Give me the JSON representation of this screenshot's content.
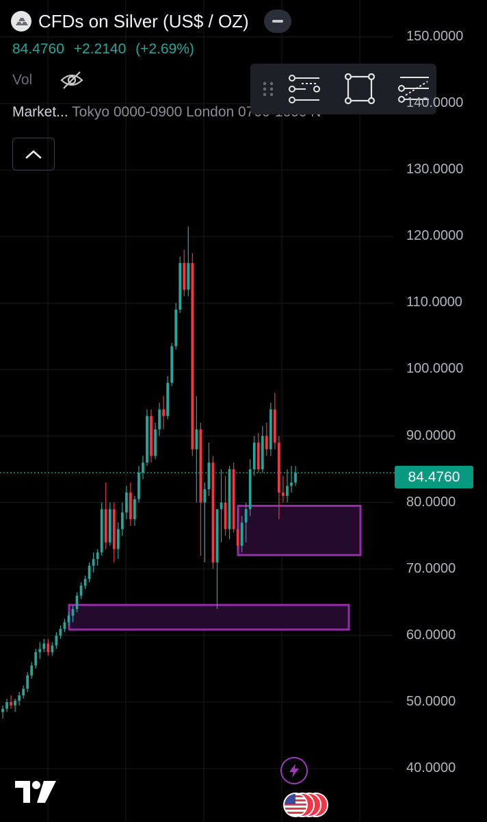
{
  "header": {
    "title": "CFDs on Silver (US$ / OZ)",
    "last_price": "84.4760",
    "change": "+2.2140",
    "change_pct": "(+2.69%)",
    "vol_label": "Vol",
    "market_label": "Market...",
    "sessions_text": "Tokyo 0000-0900 London 0700-1600 N"
  },
  "price_tag": "84.4760",
  "icons": {
    "symbol_logo": "silver-bars-icon",
    "collapse": "minus-icon",
    "visibility": "eye-off-icon",
    "expand": "chevron-up-icon",
    "toolbar_grip": "drag-handle-icon",
    "tool_1": "horizontal-lines-tool-icon",
    "tool_2": "rectangle-tool-icon",
    "tool_3": "parallel-channel-tool-icon",
    "lightning": "lightning-icon",
    "events": "us-flag-events-icon",
    "brand": "tradingview-logo-icon"
  },
  "colors": {
    "up": "#26a69a",
    "down": "#f23645",
    "zone_border": "#9c27b0",
    "zone_fill": "#240a2b",
    "price_line": "#089981"
  },
  "chart_data": {
    "type": "candlestick",
    "title": "CFDs on Silver (US$ / OZ)",
    "yaxis": {
      "ticks": [
        "150.0000",
        "140.0000",
        "130.0000",
        "120.0000",
        "110.0000",
        "100.0000",
        "90.0000",
        "80.0000",
        "70.0000",
        "60.0000",
        "50.0000",
        "40.0000"
      ],
      "ylim": [
        37,
        157
      ]
    },
    "last_price": 84.476,
    "grid": true,
    "ohlc": [
      [
        48.5,
        49.5,
        47.5,
        49
      ],
      [
        49,
        50.5,
        48.5,
        50
      ],
      [
        50,
        51,
        49,
        49.5
      ],
      [
        49.5,
        50.5,
        48.5,
        50.2
      ],
      [
        50.2,
        51.5,
        49.5,
        51
      ],
      [
        51,
        52.5,
        50.5,
        52
      ],
      [
        52,
        54.5,
        51.5,
        54
      ],
      [
        54,
        56,
        53.5,
        55.5
      ],
      [
        55.5,
        58,
        55,
        57.5
      ],
      [
        57.5,
        59,
        56.5,
        58
      ],
      [
        58,
        59.5,
        57.5,
        58.8
      ],
      [
        58.8,
        59.5,
        57,
        57.5
      ],
      [
        57.5,
        59,
        57,
        58.5
      ],
      [
        58.5,
        60.5,
        58,
        60
      ],
      [
        60,
        61.5,
        59.5,
        61
      ],
      [
        61,
        62.5,
        60.5,
        62
      ],
      [
        62,
        63.5,
        61.5,
        63
      ],
      [
        63,
        64.5,
        62,
        64
      ],
      [
        64,
        66.5,
        63.5,
        66
      ],
      [
        66,
        68,
        65.5,
        67.5
      ],
      [
        67.5,
        69,
        67,
        68.5
      ],
      [
        68.5,
        71,
        68,
        70.5
      ],
      [
        70.5,
        72.5,
        69.5,
        71.5
      ],
      [
        71.5,
        73,
        70.5,
        72.5
      ],
      [
        72.5,
        80,
        72,
        79
      ],
      [
        79,
        83,
        73,
        74
      ],
      [
        74,
        80,
        73.5,
        79
      ],
      [
        79,
        80,
        71,
        73
      ],
      [
        73,
        77,
        71.5,
        76
      ],
      [
        76,
        80,
        75,
        78.5
      ],
      [
        78.5,
        82.5,
        77.5,
        81.5
      ],
      [
        81.5,
        83,
        76.5,
        77.5
      ],
      [
        77.5,
        81,
        76.5,
        80.5
      ],
      [
        80.5,
        85.5,
        80,
        84.5
      ],
      [
        84.5,
        87,
        83.5,
        86
      ],
      [
        86,
        94,
        85.5,
        93
      ],
      [
        93,
        94,
        86,
        87
      ],
      [
        87,
        92,
        86.5,
        91
      ],
      [
        91,
        95,
        90,
        94
      ],
      [
        94,
        96,
        91,
        93
      ],
      [
        93,
        99,
        92.5,
        98
      ],
      [
        98,
        104,
        97.5,
        103.5
      ],
      [
        103.5,
        110,
        103,
        109
      ],
      [
        109,
        117,
        108.5,
        116
      ],
      [
        116,
        118,
        111,
        112
      ],
      [
        112,
        121.5,
        111,
        116
      ],
      [
        116,
        117.5,
        87,
        88
      ],
      [
        88,
        96,
        80,
        91
      ],
      [
        91,
        92,
        72,
        80
      ],
      [
        80,
        83,
        71,
        82
      ],
      [
        82,
        89,
        81,
        86
      ],
      [
        86,
        87,
        70,
        71
      ],
      [
        71,
        79,
        64,
        79
      ],
      [
        79,
        85,
        74,
        80
      ],
      [
        80,
        84,
        75,
        76
      ],
      [
        76,
        85.5,
        74.5,
        85
      ],
      [
        85,
        86,
        75.5,
        76
      ],
      [
        76,
        79,
        73,
        73.5
      ],
      [
        73.5,
        78,
        72.5,
        77
      ],
      [
        77,
        80,
        74,
        79
      ],
      [
        79,
        86.5,
        78,
        85
      ],
      [
        85,
        90,
        84,
        89
      ],
      [
        89,
        90.5,
        84.5,
        85
      ],
      [
        85,
        91.5,
        84.5,
        90
      ],
      [
        90,
        92,
        87,
        88
      ],
      [
        88,
        95,
        87,
        94
      ],
      [
        94,
        96.5,
        88,
        89
      ],
      [
        89,
        90,
        77.5,
        81.5
      ],
      [
        81.5,
        84,
        80,
        81
      ],
      [
        81,
        85,
        80,
        82.5
      ],
      [
        82.5,
        85.5,
        81.5,
        83
      ],
      [
        83,
        85.5,
        82.5,
        84.476
      ]
    ],
    "zones": [
      {
        "y_top": 79.5,
        "y_bottom": 72.1
      },
      {
        "y_top": 64.6,
        "y_bottom": 60.9
      }
    ]
  }
}
